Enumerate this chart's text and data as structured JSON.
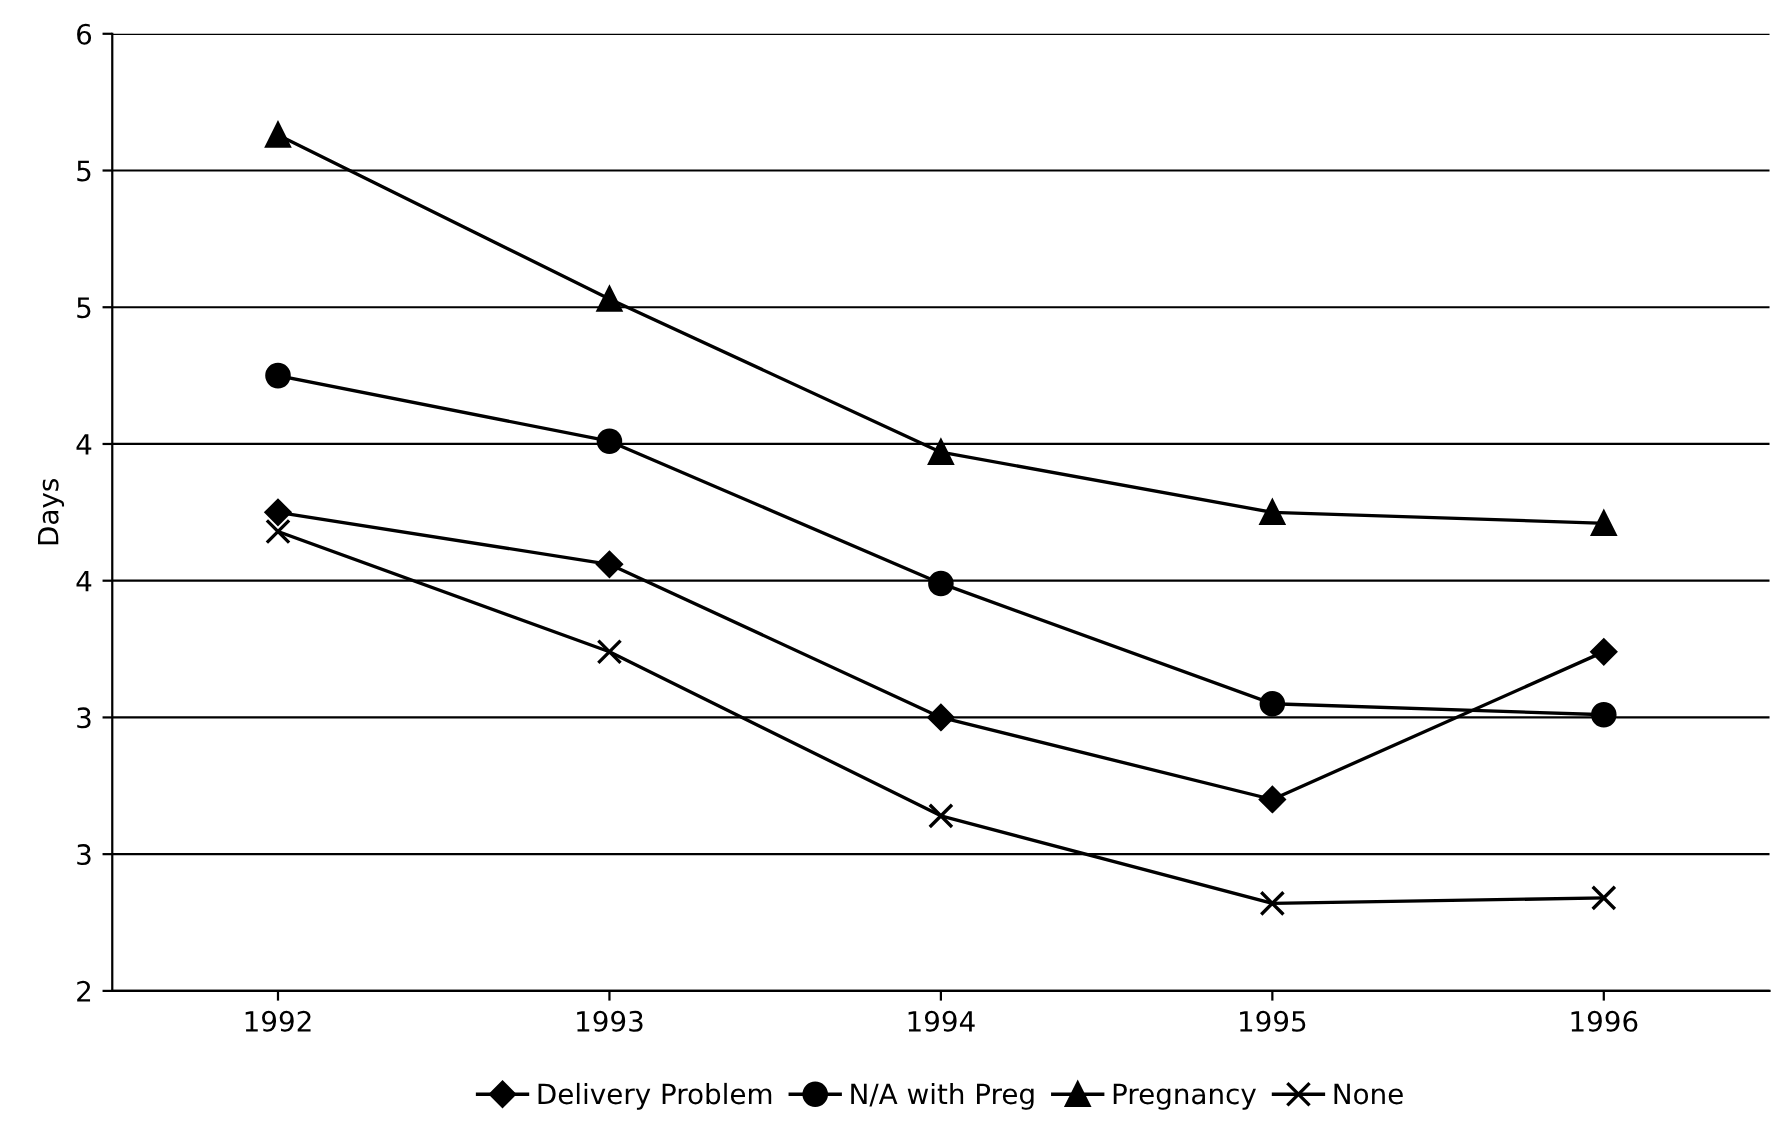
{
  "chart_data": {
    "type": "line",
    "ylabel": "Days",
    "categories": [
      "1992",
      "1993",
      "1994",
      "1995",
      "1996"
    ],
    "series": [
      {
        "name": "Delivery Problem",
        "color": "#000000",
        "marker": "diamond",
        "values": [
          3.75,
          3.56,
          3.0,
          2.7,
          3.24
        ]
      },
      {
        "name": "N/A with Preg",
        "color": "#000000",
        "marker": "circle",
        "values": [
          4.25,
          4.01,
          3.49,
          3.05,
          3.01
        ]
      },
      {
        "name": "Pregnancy",
        "color": "#000000",
        "marker": "triangle",
        "values": [
          5.13,
          4.53,
          3.97,
          3.75,
          3.71
        ]
      },
      {
        "name": "None",
        "color": "#000000",
        "marker": "cross",
        "values": [
          3.68,
          3.24,
          2.64,
          2.32,
          2.34
        ]
      }
    ],
    "ylim": [
      2,
      5.5
    ],
    "yticks": [
      {
        "value": 2,
        "label": "2"
      },
      {
        "value": 2.5,
        "label": "3"
      },
      {
        "value": 3,
        "label": "3"
      },
      {
        "value": 3.5,
        "label": "4"
      },
      {
        "value": 4,
        "label": "4"
      },
      {
        "value": 4.5,
        "label": "5"
      },
      {
        "value": 5,
        "label": "5"
      },
      {
        "value": 5.5,
        "label": "6"
      }
    ],
    "grid": "y",
    "legend": "bottom"
  }
}
